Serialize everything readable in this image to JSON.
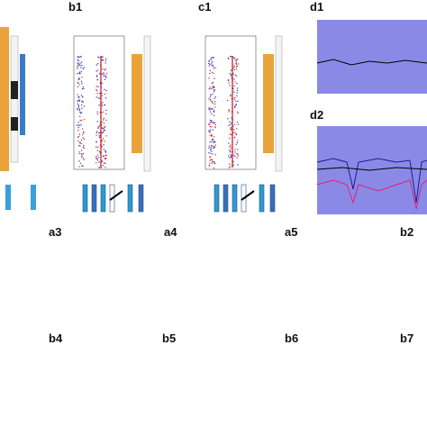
{
  "labels": [
    "b1",
    "c1",
    "d1",
    "d2",
    "a3",
    "a4",
    "a5",
    "b2",
    "b4",
    "b5",
    "b6",
    "b7"
  ]
}
